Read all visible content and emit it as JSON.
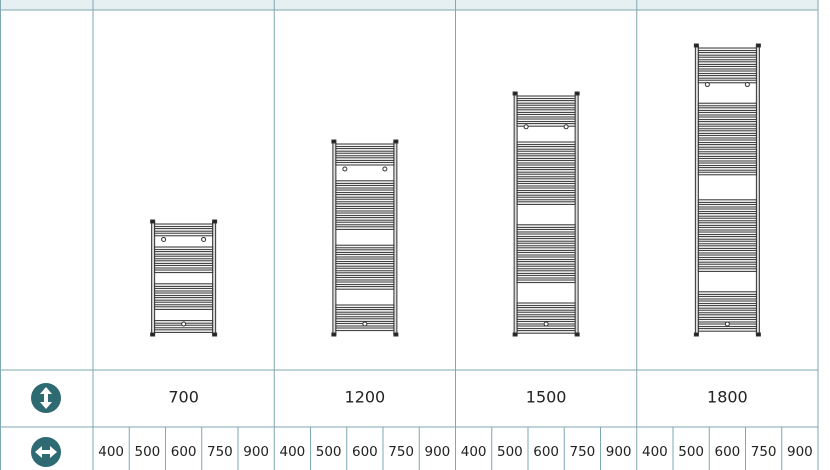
{
  "table": {
    "heights": [
      700,
      1200,
      1500,
      1800
    ],
    "widths": [
      [
        400,
        500,
        600,
        750,
        900
      ],
      [
        400,
        500,
        600,
        750,
        900
      ],
      [
        400,
        500,
        600,
        750,
        900
      ],
      [
        400,
        500,
        600,
        750,
        900
      ]
    ]
  }
}
